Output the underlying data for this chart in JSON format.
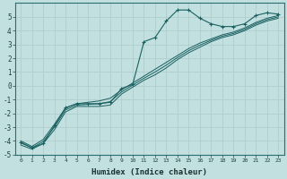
{
  "xlabel": "Humidex (Indice chaleur)",
  "background_color": "#c2e0e0",
  "grid_color": "#b0cece",
  "line_color": "#1a6060",
  "x_values": [
    0,
    1,
    2,
    3,
    4,
    5,
    6,
    7,
    8,
    9,
    10,
    11,
    12,
    13,
    14,
    15,
    16,
    17,
    18,
    19,
    20,
    21,
    22,
    23
  ],
  "y_main": [
    -4.1,
    -4.5,
    -4.2,
    -2.9,
    -1.6,
    -1.3,
    -1.3,
    -1.3,
    -1.2,
    -0.2,
    0.1,
    3.2,
    3.5,
    4.7,
    5.5,
    5.5,
    4.9,
    4.5,
    4.3,
    4.3,
    4.5,
    5.1,
    5.3,
    5.2
  ],
  "y_line1": [
    -4.0,
    -4.4,
    -3.9,
    -2.8,
    -1.6,
    -1.3,
    -1.2,
    -1.1,
    -0.9,
    -0.3,
    0.2,
    0.7,
    1.2,
    1.7,
    2.2,
    2.7,
    3.1,
    3.4,
    3.7,
    3.9,
    4.2,
    4.6,
    4.9,
    5.1
  ],
  "y_line2": [
    -4.3,
    -4.6,
    -4.2,
    -3.2,
    -1.9,
    -1.5,
    -1.5,
    -1.5,
    -1.4,
    -0.6,
    -0.1,
    0.4,
    0.8,
    1.3,
    1.9,
    2.4,
    2.8,
    3.2,
    3.5,
    3.7,
    4.0,
    4.4,
    4.7,
    4.9
  ],
  "y_line3": [
    -4.15,
    -4.5,
    -4.05,
    -3.0,
    -1.75,
    -1.4,
    -1.35,
    -1.3,
    -1.15,
    -0.45,
    0.05,
    0.55,
    1.0,
    1.5,
    2.05,
    2.55,
    2.95,
    3.3,
    3.6,
    3.8,
    4.1,
    4.5,
    4.8,
    5.0
  ],
  "ylim": [
    -5,
    6
  ],
  "xlim": [
    -0.5,
    23.5
  ],
  "yticks": [
    -5,
    -4,
    -3,
    -2,
    -1,
    0,
    1,
    2,
    3,
    4,
    5
  ],
  "xticks": [
    0,
    1,
    2,
    3,
    4,
    5,
    6,
    7,
    8,
    9,
    10,
    11,
    12,
    13,
    14,
    15,
    16,
    17,
    18,
    19,
    20,
    21,
    22,
    23
  ]
}
